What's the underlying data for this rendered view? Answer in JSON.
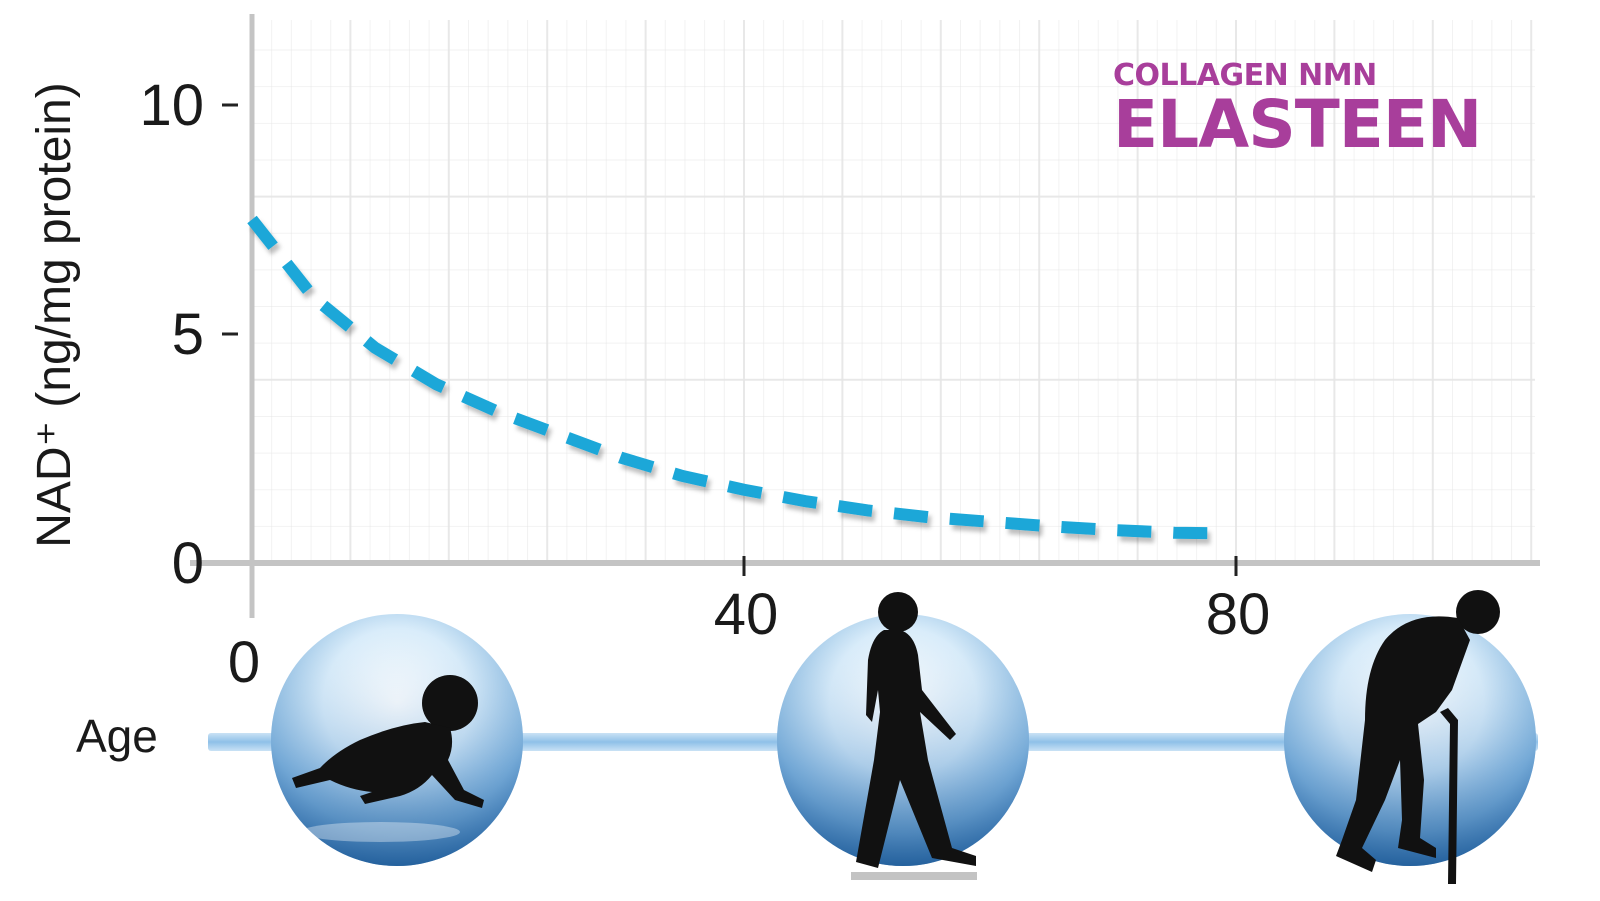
{
  "brand": {
    "subtitle": "COLLAGEN NMN",
    "name": "ELASTEEN",
    "color": "#a83e9b"
  },
  "chart_data": {
    "type": "line",
    "title": "",
    "xlabel": "Age",
    "ylabel": "NAD⁺ (ng/mg protein)",
    "x_ticks": [
      "0",
      "40",
      "80"
    ],
    "y_ticks": [
      "0",
      "5",
      "10"
    ],
    "xlim": [
      0,
      104
    ],
    "ylim": [
      0,
      12
    ],
    "grid": true,
    "line_style": "dashed",
    "series": [
      {
        "color": "#1aa7d8",
        "x": [
          0,
          5,
          10,
          15,
          20,
          25,
          30,
          35,
          40,
          45,
          50,
          55,
          60,
          65,
          70,
          75,
          79
        ],
        "y": [
          7.5,
          5.8,
          4.7,
          3.9,
          3.3,
          2.8,
          2.3,
          1.9,
          1.6,
          1.35,
          1.15,
          1.0,
          0.9,
          0.8,
          0.72,
          0.66,
          0.65
        ]
      }
    ],
    "stage_icons": [
      "crawling-baby-icon",
      "walking-man-icon",
      "elderly-man-with-cane-icon"
    ],
    "colors": {
      "line": "#1aa7d8",
      "axis": "#bdbdbd",
      "grid": "#e6e6e6",
      "age_bar": "#9cc9ea"
    }
  }
}
